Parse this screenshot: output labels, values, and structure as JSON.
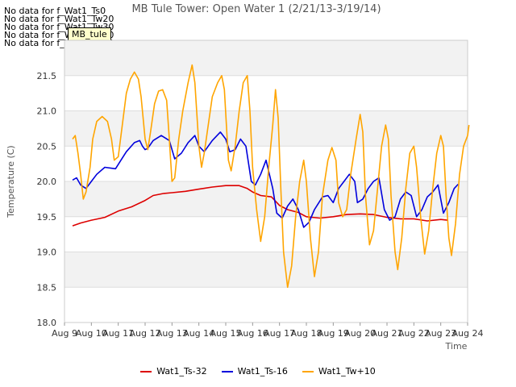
{
  "no_data_notes": [
    "No data for f_Wat1_Ts0",
    "No data for f_Wat1_Tw20",
    "No data for f_Wat1_Tw30",
    "No data for f_Wat1_Tw40",
    "No data for f_Wat1_Tw50"
  ],
  "badge_label": "MB_tule",
  "chart_data": {
    "type": "line",
    "title": "MB Tule Tower: Open Water 1 (2/21/13-3/19/14)",
    "xlabel": "Time",
    "ylabel": "Temperature (C)",
    "xlim": [
      9,
      24
    ],
    "ylim": [
      18.0,
      22.0
    ],
    "x_ticks": [
      {
        "v": 9,
        "label": "Aug 9"
      },
      {
        "v": 10,
        "label": "Aug 10"
      },
      {
        "v": 11,
        "label": "Aug 11"
      },
      {
        "v": 12,
        "label": "Aug 12"
      },
      {
        "v": 13,
        "label": "Aug 13"
      },
      {
        "v": 14,
        "label": "Aug 14"
      },
      {
        "v": 15,
        "label": "Aug 15"
      },
      {
        "v": 16,
        "label": "Aug 16"
      },
      {
        "v": 17,
        "label": "Aug 17"
      },
      {
        "v": 18,
        "label": "Aug 18"
      },
      {
        "v": 19,
        "label": "Aug 19"
      },
      {
        "v": 20,
        "label": "Aug 20"
      },
      {
        "v": 21,
        "label": "Aug 21"
      },
      {
        "v": 22,
        "label": "Aug 22"
      },
      {
        "v": 23,
        "label": "Aug 23"
      },
      {
        "v": 24,
        "label": "Aug 24"
      }
    ],
    "y_ticks": [
      "18.0",
      "18.5",
      "19.0",
      "19.5",
      "20.0",
      "20.5",
      "21.0",
      "21.5"
    ],
    "grid": true,
    "legend_position": "bottom",
    "series": [
      {
        "name": "Wat1_Ts-32",
        "color": "#dd0000",
        "points": [
          [
            9.3,
            19.37
          ],
          [
            9.6,
            19.41
          ],
          [
            10.0,
            19.45
          ],
          [
            10.5,
            19.49
          ],
          [
            11.0,
            19.58
          ],
          [
            11.5,
            19.64
          ],
          [
            12.0,
            19.73
          ],
          [
            12.3,
            19.8
          ],
          [
            12.7,
            19.83
          ],
          [
            13.0,
            19.84
          ],
          [
            13.5,
            19.86
          ],
          [
            14.0,
            19.89
          ],
          [
            14.5,
            19.92
          ],
          [
            15.0,
            19.94
          ],
          [
            15.5,
            19.94
          ],
          [
            15.8,
            19.9
          ],
          [
            16.0,
            19.85
          ],
          [
            16.3,
            19.8
          ],
          [
            16.7,
            19.78
          ],
          [
            17.0,
            19.66
          ],
          [
            17.3,
            19.6
          ],
          [
            17.7,
            19.56
          ],
          [
            18.0,
            19.5
          ],
          [
            18.5,
            19.48
          ],
          [
            19.0,
            19.5
          ],
          [
            19.5,
            19.53
          ],
          [
            20.0,
            19.54
          ],
          [
            20.5,
            19.53
          ],
          [
            21.0,
            19.49
          ],
          [
            21.5,
            19.47
          ],
          [
            22.0,
            19.47
          ],
          [
            22.5,
            19.44
          ],
          [
            23.0,
            19.46
          ],
          [
            23.25,
            19.45
          ]
        ]
      },
      {
        "name": "Wat1_Ts-16",
        "color": "#0000dd",
        "points": [
          [
            9.3,
            20.02
          ],
          [
            9.45,
            20.05
          ],
          [
            9.6,
            19.95
          ],
          [
            9.8,
            19.9
          ],
          [
            10.0,
            20.0
          ],
          [
            10.2,
            20.1
          ],
          [
            10.5,
            20.2
          ],
          [
            10.9,
            20.18
          ],
          [
            11.1,
            20.3
          ],
          [
            11.3,
            20.42
          ],
          [
            11.6,
            20.55
          ],
          [
            11.8,
            20.58
          ],
          [
            11.9,
            20.5
          ],
          [
            12.0,
            20.45
          ],
          [
            12.1,
            20.47
          ],
          [
            12.3,
            20.58
          ],
          [
            12.6,
            20.65
          ],
          [
            12.9,
            20.58
          ],
          [
            13.1,
            20.32
          ],
          [
            13.35,
            20.4
          ],
          [
            13.6,
            20.55
          ],
          [
            13.85,
            20.65
          ],
          [
            14.0,
            20.5
          ],
          [
            14.2,
            20.42
          ],
          [
            14.5,
            20.58
          ],
          [
            14.8,
            20.7
          ],
          [
            15.0,
            20.6
          ],
          [
            15.15,
            20.42
          ],
          [
            15.35,
            20.45
          ],
          [
            15.55,
            20.6
          ],
          [
            15.75,
            20.5
          ],
          [
            15.95,
            20.0
          ],
          [
            16.1,
            19.95
          ],
          [
            16.3,
            20.1
          ],
          [
            16.5,
            20.3
          ],
          [
            16.75,
            19.9
          ],
          [
            16.9,
            19.55
          ],
          [
            17.1,
            19.48
          ],
          [
            17.3,
            19.65
          ],
          [
            17.5,
            19.75
          ],
          [
            17.7,
            19.6
          ],
          [
            17.9,
            19.35
          ],
          [
            18.1,
            19.42
          ],
          [
            18.3,
            19.6
          ],
          [
            18.6,
            19.78
          ],
          [
            18.8,
            19.8
          ],
          [
            19.0,
            19.7
          ],
          [
            19.2,
            19.9
          ],
          [
            19.4,
            20.0
          ],
          [
            19.6,
            20.1
          ],
          [
            19.8,
            20.0
          ],
          [
            19.9,
            19.7
          ],
          [
            20.1,
            19.75
          ],
          [
            20.3,
            19.9
          ],
          [
            20.5,
            20.0
          ],
          [
            20.7,
            20.05
          ],
          [
            20.9,
            19.6
          ],
          [
            21.1,
            19.45
          ],
          [
            21.3,
            19.5
          ],
          [
            21.5,
            19.75
          ],
          [
            21.7,
            19.85
          ],
          [
            21.9,
            19.8
          ],
          [
            22.1,
            19.5
          ],
          [
            22.3,
            19.6
          ],
          [
            22.5,
            19.78
          ],
          [
            22.7,
            19.85
          ],
          [
            22.9,
            19.95
          ],
          [
            23.1,
            19.55
          ],
          [
            23.3,
            19.7
          ],
          [
            23.5,
            19.9
          ],
          [
            23.65,
            19.96
          ]
        ]
      },
      {
        "name": "Wat1_Tw+10",
        "color": "#ffa500",
        "points": [
          [
            9.3,
            20.6
          ],
          [
            9.4,
            20.65
          ],
          [
            9.5,
            20.4
          ],
          [
            9.6,
            20.1
          ],
          [
            9.7,
            19.75
          ],
          [
            9.8,
            19.85
          ],
          [
            9.95,
            20.2
          ],
          [
            10.05,
            20.6
          ],
          [
            10.2,
            20.85
          ],
          [
            10.4,
            20.92
          ],
          [
            10.6,
            20.85
          ],
          [
            10.75,
            20.6
          ],
          [
            10.85,
            20.3
          ],
          [
            11.0,
            20.35
          ],
          [
            11.15,
            20.8
          ],
          [
            11.3,
            21.25
          ],
          [
            11.45,
            21.45
          ],
          [
            11.6,
            21.55
          ],
          [
            11.75,
            21.45
          ],
          [
            11.85,
            21.2
          ],
          [
            12.0,
            20.6
          ],
          [
            12.1,
            20.45
          ],
          [
            12.2,
            20.7
          ],
          [
            12.35,
            21.1
          ],
          [
            12.5,
            21.28
          ],
          [
            12.65,
            21.3
          ],
          [
            12.8,
            21.15
          ],
          [
            12.9,
            20.6
          ],
          [
            13.0,
            20.0
          ],
          [
            13.1,
            20.05
          ],
          [
            13.25,
            20.6
          ],
          [
            13.4,
            21.0
          ],
          [
            13.6,
            21.4
          ],
          [
            13.75,
            21.65
          ],
          [
            13.85,
            21.4
          ],
          [
            14.0,
            20.5
          ],
          [
            14.1,
            20.2
          ],
          [
            14.2,
            20.4
          ],
          [
            14.35,
            20.8
          ],
          [
            14.5,
            21.2
          ],
          [
            14.7,
            21.4
          ],
          [
            14.85,
            21.5
          ],
          [
            14.95,
            21.3
          ],
          [
            15.1,
            20.3
          ],
          [
            15.2,
            20.15
          ],
          [
            15.35,
            20.5
          ],
          [
            15.5,
            21.0
          ],
          [
            15.65,
            21.4
          ],
          [
            15.8,
            21.5
          ],
          [
            15.9,
            21.0
          ],
          [
            16.0,
            20.2
          ],
          [
            16.15,
            19.6
          ],
          [
            16.3,
            19.15
          ],
          [
            16.45,
            19.5
          ],
          [
            16.6,
            20.2
          ],
          [
            16.75,
            20.8
          ],
          [
            16.85,
            21.3
          ],
          [
            16.95,
            20.9
          ],
          [
            17.05,
            19.9
          ],
          [
            17.15,
            19.0
          ],
          [
            17.3,
            18.5
          ],
          [
            17.45,
            18.8
          ],
          [
            17.6,
            19.5
          ],
          [
            17.75,
            20.0
          ],
          [
            17.9,
            20.3
          ],
          [
            18.0,
            20.0
          ],
          [
            18.15,
            19.2
          ],
          [
            18.3,
            18.65
          ],
          [
            18.45,
            19.0
          ],
          [
            18.6,
            19.8
          ],
          [
            18.8,
            20.3
          ],
          [
            18.95,
            20.48
          ],
          [
            19.1,
            20.3
          ],
          [
            19.2,
            19.7
          ],
          [
            19.35,
            19.5
          ],
          [
            19.5,
            19.6
          ],
          [
            19.65,
            20.1
          ],
          [
            19.85,
            20.6
          ],
          [
            20.0,
            20.95
          ],
          [
            20.1,
            20.7
          ],
          [
            20.2,
            19.8
          ],
          [
            20.35,
            19.1
          ],
          [
            20.5,
            19.3
          ],
          [
            20.65,
            19.9
          ],
          [
            20.8,
            20.5
          ],
          [
            20.95,
            20.8
          ],
          [
            21.05,
            20.6
          ],
          [
            21.15,
            19.8
          ],
          [
            21.3,
            19.0
          ],
          [
            21.4,
            18.75
          ],
          [
            21.55,
            19.2
          ],
          [
            21.7,
            19.9
          ],
          [
            21.85,
            20.4
          ],
          [
            22.0,
            20.5
          ],
          [
            22.1,
            20.2
          ],
          [
            22.25,
            19.5
          ],
          [
            22.4,
            18.97
          ],
          [
            22.55,
            19.3
          ],
          [
            22.7,
            19.9
          ],
          [
            22.85,
            20.4
          ],
          [
            23.0,
            20.65
          ],
          [
            23.1,
            20.5
          ],
          [
            23.2,
            19.8
          ],
          [
            23.3,
            19.2
          ],
          [
            23.4,
            18.95
          ],
          [
            23.55,
            19.4
          ],
          [
            23.7,
            20.1
          ],
          [
            23.85,
            20.5
          ],
          [
            24.0,
            20.65
          ],
          [
            24.05,
            20.8
          ]
        ]
      }
    ]
  }
}
